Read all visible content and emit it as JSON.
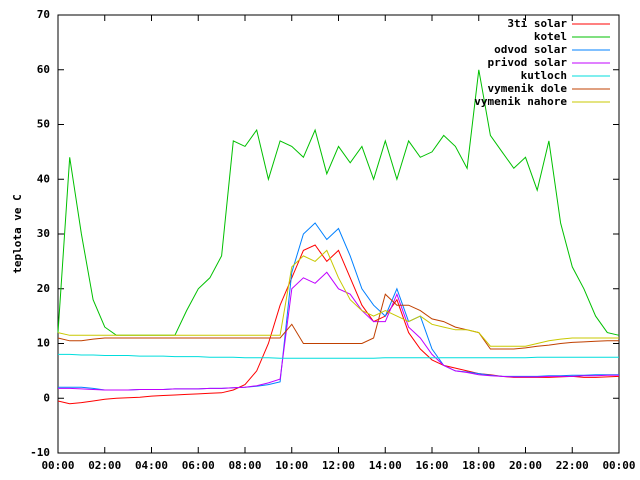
{
  "chart_data": {
    "type": "line",
    "ylabel": "teplota ve C",
    "x": [
      0,
      0.5,
      1,
      1.5,
      2,
      2.5,
      3,
      3.5,
      4,
      4.5,
      5,
      5.5,
      6,
      6.5,
      7,
      7.5,
      8,
      8.5,
      9,
      9.5,
      10,
      10.5,
      11,
      11.5,
      12,
      12.5,
      13,
      13.5,
      14,
      14.5,
      15,
      15.5,
      16,
      16.5,
      17,
      17.5,
      18,
      18.5,
      19,
      19.5,
      20,
      20.5,
      21,
      21.5,
      22,
      22.5,
      23,
      23.5,
      24
    ],
    "xlim": [
      0,
      24
    ],
    "xticks": [
      {
        "value": 0,
        "label": "00:00"
      },
      {
        "value": 2,
        "label": "02:00"
      },
      {
        "value": 4,
        "label": "04:00"
      },
      {
        "value": 6,
        "label": "06:00"
      },
      {
        "value": 8,
        "label": "08:00"
      },
      {
        "value": 10,
        "label": "10:00"
      },
      {
        "value": 12,
        "label": "12:00"
      },
      {
        "value": 14,
        "label": "14:00"
      },
      {
        "value": 16,
        "label": "16:00"
      },
      {
        "value": 18,
        "label": "18:00"
      },
      {
        "value": 20,
        "label": "20:00"
      },
      {
        "value": 22,
        "label": "22:00"
      },
      {
        "value": 24,
        "label": "00:00"
      }
    ],
    "ylim": [
      -10,
      70
    ],
    "yticks": [
      -10,
      0,
      10,
      20,
      30,
      40,
      50,
      60,
      70
    ],
    "legend": "top right",
    "series": [
      {
        "name": "3ti solar",
        "color": "#ff0000",
        "values": [
          -0.5,
          -1,
          -0.8,
          -0.5,
          -0.2,
          0,
          0.1,
          0.2,
          0.4,
          0.5,
          0.6,
          0.7,
          0.8,
          0.9,
          1,
          1.5,
          2.5,
          5,
          10,
          17,
          22,
          27,
          28,
          25,
          27,
          22,
          17,
          14,
          15,
          18,
          12,
          9,
          7,
          6,
          5.5,
          5,
          4.5,
          4.3,
          4,
          3.8,
          3.8,
          3.8,
          3.8,
          3.9,
          4,
          3.8,
          3.8,
          3.9,
          4
        ]
      },
      {
        "name": "kotel",
        "color": "#00c000",
        "values": [
          12,
          44,
          30,
          18,
          13,
          11.5,
          11.5,
          11.5,
          11.5,
          11.5,
          11.5,
          16,
          20,
          22,
          26,
          47,
          46,
          49,
          40,
          47,
          46,
          44,
          49,
          41,
          46,
          43,
          46,
          40,
          47,
          40,
          47,
          44,
          45,
          48,
          46,
          42,
          60,
          48,
          45,
          42,
          44,
          38,
          47,
          32,
          24,
          20,
          15,
          12,
          11.5
        ]
      },
      {
        "name": "odvod solar",
        "color": "#0080ff",
        "values": [
          2,
          2,
          2,
          1.8,
          1.5,
          1.5,
          1.5,
          1.6,
          1.6,
          1.6,
          1.7,
          1.7,
          1.7,
          1.8,
          1.8,
          1.9,
          2,
          2.2,
          2.5,
          3,
          23,
          30,
          32,
          29,
          31,
          26,
          20,
          17,
          15,
          20,
          14,
          15,
          9,
          6,
          5,
          4.8,
          4.5,
          4.2,
          4,
          4,
          4,
          4,
          4.1,
          4.1,
          4.2,
          4.2,
          4.3,
          4.3,
          4.3
        ]
      },
      {
        "name": "privod solar",
        "color": "#c000ff",
        "values": [
          1.8,
          1.8,
          1.7,
          1.6,
          1.5,
          1.5,
          1.5,
          1.6,
          1.6,
          1.6,
          1.7,
          1.7,
          1.7,
          1.8,
          1.8,
          1.9,
          2,
          2.3,
          2.8,
          3.5,
          20,
          22,
          21,
          23,
          20,
          19,
          16,
          14,
          14,
          19,
          13,
          11,
          8,
          6,
          5,
          4.7,
          4.3,
          4.1,
          4,
          3.9,
          3.9,
          3.9,
          4,
          4,
          4,
          4.1,
          4.1,
          4.2,
          4.2
        ]
      },
      {
        "name": "kutloch",
        "color": "#00dddd",
        "values": [
          8,
          8,
          7.9,
          7.9,
          7.8,
          7.8,
          7.8,
          7.7,
          7.7,
          7.7,
          7.6,
          7.6,
          7.6,
          7.5,
          7.5,
          7.5,
          7.4,
          7.4,
          7.4,
          7.3,
          7.3,
          7.3,
          7.3,
          7.3,
          7.3,
          7.3,
          7.3,
          7.3,
          7.4,
          7.4,
          7.4,
          7.4,
          7.4,
          7.4,
          7.4,
          7.4,
          7.4,
          7.4,
          7.4,
          7.4,
          7.4,
          7.5,
          7.5,
          7.5,
          7.5,
          7.5,
          7.5,
          7.5,
          7.5
        ]
      },
      {
        "name": "vymenik dole",
        "color": "#c04000",
        "values": [
          11,
          10.5,
          10.5,
          10.8,
          11,
          11,
          11,
          11,
          11,
          11,
          11,
          11,
          11,
          11,
          11,
          11,
          11,
          11,
          11,
          11,
          13.5,
          10,
          10,
          10,
          10,
          10,
          10,
          11,
          19,
          17,
          17,
          16,
          14.5,
          14,
          13,
          12.5,
          12,
          9,
          9,
          9,
          9.2,
          9.5,
          9.7,
          10,
          10.2,
          10.3,
          10.4,
          10.5,
          10.5
        ]
      },
      {
        "name": "vymenik nahore",
        "color": "#c8c800",
        "values": [
          12,
          11.5,
          11.5,
          11.5,
          11.5,
          11.5,
          11.5,
          11.5,
          11.5,
          11.5,
          11.5,
          11.5,
          11.5,
          11.5,
          11.5,
          11.5,
          11.5,
          11.5,
          11.5,
          11.5,
          24,
          26,
          25,
          27,
          22,
          18,
          16,
          15,
          16,
          15,
          14,
          15,
          13.5,
          13,
          12.5,
          12.5,
          12,
          9.5,
          9.5,
          9.5,
          9.5,
          10,
          10.5,
          10.8,
          11,
          11,
          11,
          11,
          11
        ]
      }
    ]
  }
}
